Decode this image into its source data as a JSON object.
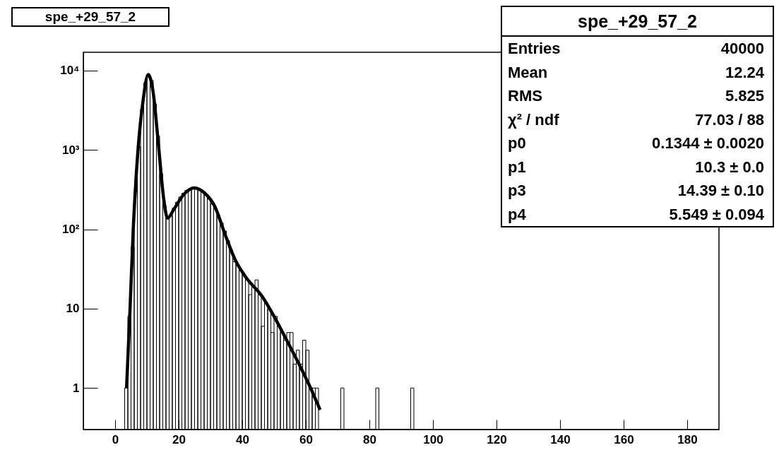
{
  "chart_data": {
    "type": "histogram",
    "title": "spe_+29_57_2",
    "series": [
      {
        "type": "histogram",
        "color": "#000000",
        "bins": [
          3,
          4,
          5,
          6,
          7,
          8,
          9,
          10,
          11,
          12,
          13,
          14,
          15,
          16,
          17,
          18,
          19,
          20,
          21,
          22,
          23,
          24,
          25,
          26,
          27,
          28,
          29,
          30,
          31,
          32,
          33,
          34,
          35,
          36,
          37,
          38,
          39,
          40,
          41,
          42,
          43,
          44,
          45,
          46,
          47,
          48,
          49,
          50,
          51,
          52,
          53,
          54,
          55,
          56,
          57,
          58,
          59,
          60,
          61,
          62,
          63,
          64,
          65,
          66,
          67,
          68,
          69,
          70,
          71,
          72,
          73,
          74,
          75,
          76,
          77,
          78,
          79,
          80,
          81,
          82,
          83,
          84,
          85,
          86,
          87,
          88,
          89,
          90,
          91,
          92,
          93,
          94
        ],
        "values": [
          1,
          8,
          60,
          300,
          1100,
          3300,
          7000,
          9000,
          7500,
          3800,
          1500,
          500,
          200,
          140,
          150,
          185,
          220,
          255,
          285,
          310,
          325,
          335,
          330,
          315,
          295,
          270,
          240,
          210,
          180,
          150,
          120,
          95,
          72,
          55,
          39,
          36,
          30,
          27,
          23,
          15,
          19,
          23,
          15,
          6,
          12,
          10,
          5,
          8,
          6,
          5,
          4,
          5,
          5,
          2,
          3,
          2,
          4,
          3,
          1,
          1,
          1,
          null,
          null,
          null,
          null,
          null,
          null,
          null,
          1,
          null,
          null,
          null,
          null,
          null,
          null,
          null,
          null,
          null,
          null,
          1,
          null,
          null,
          null,
          null,
          null,
          null,
          null,
          null,
          null,
          null,
          1
        ]
      },
      {
        "type": "line",
        "color": "#000000",
        "x": [
          3.6,
          4.7,
          5.7,
          7.2,
          8.8,
          10.4,
          12.0,
          13.6,
          15.3,
          16.5,
          18.5,
          21.7,
          24.9,
          28.1,
          31.4,
          34.6,
          37.8,
          41.1,
          46.4,
          50,
          54,
          61.5,
          64.5
        ],
        "values": [
          1,
          10,
          100,
          1000,
          4200,
          8900,
          5200,
          1200,
          240,
          138,
          179,
          278,
          333,
          288,
          193,
          86,
          41,
          25,
          14,
          8,
          4,
          1,
          0.53
        ]
      }
    ],
    "xlim": [
      -10,
      190
    ],
    "xticks": [
      0,
      20,
      40,
      60,
      80,
      100,
      120,
      140,
      160,
      180
    ],
    "ylim": [
      0.3,
      17000
    ],
    "yticks": [
      {
        "value": 1,
        "label": "1"
      },
      {
        "value": 10,
        "label": "10"
      },
      {
        "value": 100,
        "label": "10²"
      },
      {
        "value": 1000,
        "label": "10³"
      },
      {
        "value": 10000,
        "label": "10⁴"
      }
    ],
    "log": true,
    "grid": false,
    "line_style": "solid",
    "annotations": [
      "spe_+29_57_2",
      "Entries",
      "40000",
      "Mean",
      "12.24",
      "RMS",
      "5.825",
      "χ² / ndf",
      "77.03 / 88",
      "p0",
      "0.1344 ± 0.0020",
      "p1",
      "10.3 ± 0.0",
      "p3",
      "14.39 ± 0.10",
      "p4",
      "5.549 ± 0.094"
    ]
  }
}
